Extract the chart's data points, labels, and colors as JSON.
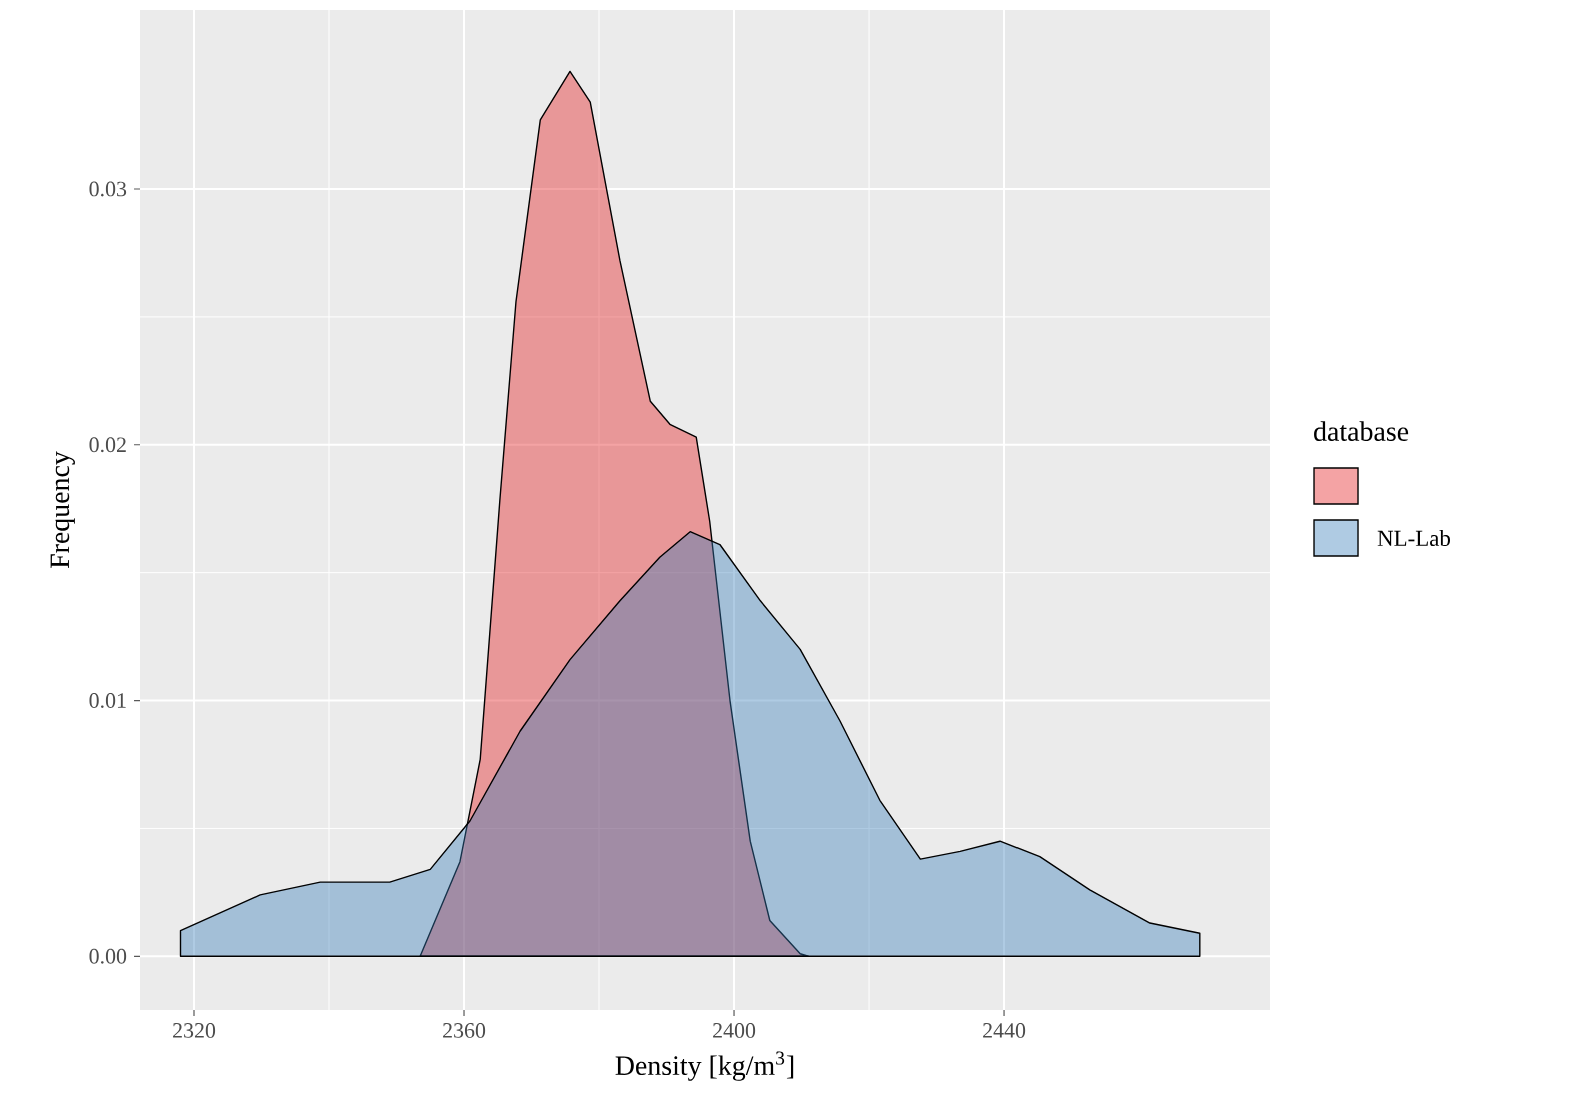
{
  "chart_data": {
    "type": "area",
    "xlabel": "Density [kg/m$^{3}$]",
    "ylabel": "Frequency",
    "legend_title": "database",
    "legend": "right",
    "grid": true,
    "xlim": [
      2312,
      2479.4
    ],
    "ylim": [
      -0.0021,
      0.037
    ],
    "xticks": [
      2320,
      2360,
      2400,
      2440
    ],
    "yticks": [
      {
        "value": 0,
        "label": "0.00"
      },
      {
        "value": 0.01,
        "label": "0.01"
      },
      {
        "value": 0.02,
        "label": "0.02"
      },
      {
        "value": 0.03,
        "label": "0.03"
      }
    ],
    "series": [
      {
        "color": "#e41a1c",
        "x": [
          2353.5,
          2359.4,
          2362.4,
          2365.3,
          2367.7,
          2371.3,
          2375.7,
          2378.7,
          2383.1,
          2387.6,
          2390.5,
          2394.4,
          2396.4,
          2399.4,
          2402.4,
          2405.3,
          2409.8,
          2411
        ],
        "values": [
          0,
          0.0037,
          0.0077,
          0.0178,
          0.0256,
          0.0327,
          0.0346,
          0.0334,
          0.0272,
          0.0217,
          0.0208,
          0.0203,
          0.017,
          0.01,
          0.0045,
          0.0014,
          0.0001,
          0
        ]
      },
      {
        "name": "NL-Lab",
        "color": "#377eb8",
        "x": [
          2318,
          2329.8,
          2338.7,
          2349,
          2355,
          2360.9,
          2368.3,
          2375.7,
          2383.1,
          2389,
          2393.5,
          2397.9,
          2403.9,
          2409.8,
          2415.7,
          2421.6,
          2427.6,
          2433.5,
          2439.4,
          2445.3,
          2452.7,
          2461.6,
          2469
        ],
        "values": [
          0.001,
          0.0024,
          0.0029,
          0.0029,
          0.0034,
          0.0053,
          0.0088,
          0.0116,
          0.0139,
          0.0156,
          0.0166,
          0.0161,
          0.0139,
          0.012,
          0.0092,
          0.0061,
          0.0038,
          0.0041,
          0.0045,
          0.0039,
          0.0026,
          0.0013,
          0.0009
        ]
      }
    ]
  }
}
